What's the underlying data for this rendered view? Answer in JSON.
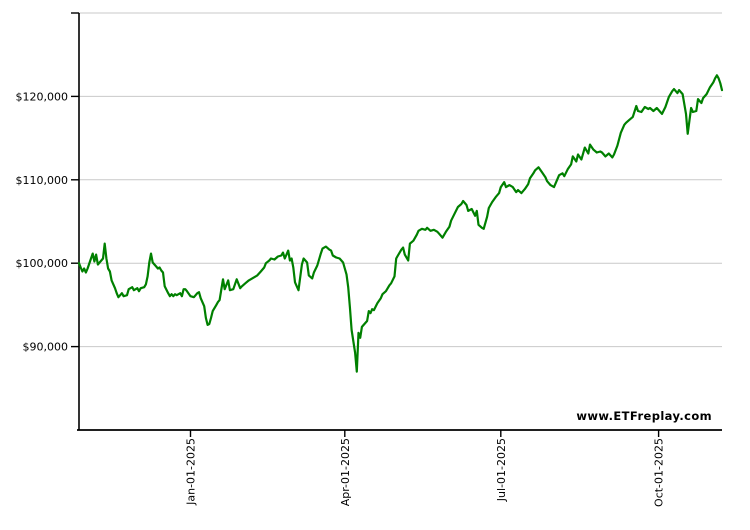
{
  "watermark": {
    "text": "www.ETFreplay.com"
  },
  "chart_data": {
    "type": "line",
    "title": "",
    "series_name": "portfolio-value",
    "line_color": "#008000",
    "grid_color": "#c9c9c9",
    "axis_color": "#000000",
    "text_color": "#000000",
    "grid": "horizontal-only",
    "legend": "none",
    "x_axis": {
      "tick_labels": [
        "Jan-01-2025",
        "Apr-01-2025",
        "Jul-01-2025",
        "Oct-01-2025"
      ],
      "tick_dates": [
        "2025-01-01",
        "2025-04-01",
        "2025-07-01",
        "2025-10-01"
      ],
      "range": [
        "2024-10-28",
        "2025-11-07"
      ]
    },
    "y_axis": {
      "tick_labels": [
        "$90,000",
        "$100,000",
        "$110,000",
        "$120,000"
      ],
      "tick_values": [
        90000,
        100000,
        110000,
        120000
      ],
      "gridline_values": [
        90000,
        100000,
        110000,
        120000,
        130000
      ],
      "range": [
        80000,
        130000
      ]
    },
    "points": [
      [
        "2024-10-28",
        100000
      ],
      [
        "2024-10-29",
        99490
      ],
      [
        "2024-10-30",
        99010
      ],
      [
        "2024-10-31",
        99370
      ],
      [
        "2024-11-01",
        98890
      ],
      [
        "2024-11-02",
        99370
      ],
      [
        "2024-11-04",
        100560
      ],
      [
        "2024-11-05",
        101150
      ],
      [
        "2024-11-06",
        100200
      ],
      [
        "2024-11-07",
        101030
      ],
      [
        "2024-11-08",
        99850
      ],
      [
        "2024-11-09",
        100080
      ],
      [
        "2024-11-11",
        100560
      ],
      [
        "2024-11-12",
        102350
      ],
      [
        "2024-11-13",
        100560
      ],
      [
        "2024-11-14",
        99370
      ],
      [
        "2024-11-15",
        99010
      ],
      [
        "2024-11-16",
        97940
      ],
      [
        "2024-11-18",
        97000
      ],
      [
        "2024-11-19",
        96400
      ],
      [
        "2024-11-20",
        95920
      ],
      [
        "2024-11-22",
        96400
      ],
      [
        "2024-11-23",
        96040
      ],
      [
        "2024-11-25",
        96160
      ],
      [
        "2024-11-26",
        96880
      ],
      [
        "2024-11-28",
        97120
      ],
      [
        "2024-11-29",
        96760
      ],
      [
        "2024-12-01",
        97000
      ],
      [
        "2024-12-02",
        96640
      ],
      [
        "2024-12-03",
        97000
      ],
      [
        "2024-12-05",
        97120
      ],
      [
        "2024-12-06",
        97470
      ],
      [
        "2024-12-07",
        98420
      ],
      [
        "2024-12-08",
        100080
      ],
      [
        "2024-12-09",
        101150
      ],
      [
        "2024-12-10",
        100080
      ],
      [
        "2024-12-12",
        99610
      ],
      [
        "2024-12-13",
        99370
      ],
      [
        "2024-12-14",
        99490
      ],
      [
        "2024-12-15",
        99130
      ],
      [
        "2024-12-16",
        98890
      ],
      [
        "2024-12-17",
        97230
      ],
      [
        "2024-12-19",
        96400
      ],
      [
        "2024-12-20",
        96040
      ],
      [
        "2024-12-21",
        96280
      ],
      [
        "2024-12-22",
        96040
      ],
      [
        "2024-12-23",
        96280
      ],
      [
        "2024-12-24",
        96160
      ],
      [
        "2024-12-26",
        96400
      ],
      [
        "2024-12-27",
        96040
      ],
      [
        "2024-12-28",
        96880
      ],
      [
        "2024-12-29",
        96880
      ],
      [
        "2024-12-30",
        96640
      ],
      [
        "2025-01-01",
        96040
      ],
      [
        "2025-01-03",
        95920
      ],
      [
        "2025-01-05",
        96400
      ],
      [
        "2025-01-06",
        96520
      ],
      [
        "2025-01-07",
        95800
      ],
      [
        "2025-01-09",
        94850
      ],
      [
        "2025-01-10",
        93430
      ],
      [
        "2025-01-11",
        92600
      ],
      [
        "2025-01-12",
        92710
      ],
      [
        "2025-01-13",
        93430
      ],
      [
        "2025-01-14",
        94260
      ],
      [
        "2025-01-16",
        94970
      ],
      [
        "2025-01-17",
        95330
      ],
      [
        "2025-01-18",
        95570
      ],
      [
        "2025-01-20",
        98070
      ],
      [
        "2025-01-21",
        96880
      ],
      [
        "2025-01-23",
        97940
      ],
      [
        "2025-01-24",
        96760
      ],
      [
        "2025-01-26",
        96880
      ],
      [
        "2025-01-28",
        98070
      ],
      [
        "2025-01-30",
        97000
      ],
      [
        "2025-01-31",
        97230
      ],
      [
        "2025-02-02",
        97590
      ],
      [
        "2025-02-04",
        97940
      ],
      [
        "2025-02-06",
        98180
      ],
      [
        "2025-02-07",
        98300
      ],
      [
        "2025-02-09",
        98540
      ],
      [
        "2025-02-11",
        99010
      ],
      [
        "2025-02-13",
        99490
      ],
      [
        "2025-02-14",
        100000
      ],
      [
        "2025-02-16",
        100320
      ],
      [
        "2025-02-17",
        100560
      ],
      [
        "2025-02-19",
        100440
      ],
      [
        "2025-02-21",
        100800
      ],
      [
        "2025-02-23",
        100920
      ],
      [
        "2025-02-24",
        101270
      ],
      [
        "2025-02-25",
        100560
      ],
      [
        "2025-02-27",
        101510
      ],
      [
        "2025-02-28",
        100320
      ],
      [
        "2025-03-01",
        100560
      ],
      [
        "2025-03-02",
        99490
      ],
      [
        "2025-03-03",
        97710
      ],
      [
        "2025-03-05",
        96760
      ],
      [
        "2025-03-07",
        99850
      ],
      [
        "2025-03-08",
        100560
      ],
      [
        "2025-03-10",
        100080
      ],
      [
        "2025-03-11",
        98540
      ],
      [
        "2025-03-13",
        98180
      ],
      [
        "2025-03-14",
        98890
      ],
      [
        "2025-03-16",
        99730
      ],
      [
        "2025-03-18",
        101150
      ],
      [
        "2025-03-19",
        101750
      ],
      [
        "2025-03-21",
        101990
      ],
      [
        "2025-03-23",
        101630
      ],
      [
        "2025-03-24",
        101510
      ],
      [
        "2025-03-25",
        100920
      ],
      [
        "2025-03-27",
        100680
      ],
      [
        "2025-03-29",
        100560
      ],
      [
        "2025-03-31",
        100080
      ],
      [
        "2025-04-01",
        99370
      ],
      [
        "2025-04-02",
        98660
      ],
      [
        "2025-04-03",
        97120
      ],
      [
        "2025-04-04",
        94730
      ],
      [
        "2025-04-05",
        92000
      ],
      [
        "2025-04-07",
        89270
      ],
      [
        "2025-04-08",
        87000
      ],
      [
        "2025-04-09",
        91650
      ],
      [
        "2025-04-10",
        91050
      ],
      [
        "2025-04-11",
        92360
      ],
      [
        "2025-04-13",
        92830
      ],
      [
        "2025-04-14",
        93070
      ],
      [
        "2025-04-15",
        94260
      ],
      [
        "2025-04-16",
        94020
      ],
      [
        "2025-04-17",
        94490
      ],
      [
        "2025-04-18",
        94380
      ],
      [
        "2025-04-20",
        95210
      ],
      [
        "2025-04-22",
        95800
      ],
      [
        "2025-04-23",
        96280
      ],
      [
        "2025-04-25",
        96640
      ],
      [
        "2025-04-27",
        97350
      ],
      [
        "2025-04-28",
        97590
      ],
      [
        "2025-04-30",
        98420
      ],
      [
        "2025-05-01",
        100560
      ],
      [
        "2025-05-02",
        100920
      ],
      [
        "2025-05-04",
        101630
      ],
      [
        "2025-05-05",
        101870
      ],
      [
        "2025-05-06",
        101030
      ],
      [
        "2025-05-08",
        100320
      ],
      [
        "2025-05-09",
        102350
      ],
      [
        "2025-05-11",
        102700
      ],
      [
        "2025-05-13",
        103420
      ],
      [
        "2025-05-14",
        103890
      ],
      [
        "2025-05-16",
        104130
      ],
      [
        "2025-05-18",
        104010
      ],
      [
        "2025-05-19",
        104250
      ],
      [
        "2025-05-21",
        103890
      ],
      [
        "2025-05-23",
        104010
      ],
      [
        "2025-05-25",
        103770
      ],
      [
        "2025-05-26",
        103540
      ],
      [
        "2025-05-28",
        103060
      ],
      [
        "2025-05-30",
        103770
      ],
      [
        "2025-06-01",
        104370
      ],
      [
        "2025-06-02",
        105090
      ],
      [
        "2025-06-04",
        105920
      ],
      [
        "2025-06-06",
        106740
      ],
      [
        "2025-06-08",
        107100
      ],
      [
        "2025-06-09",
        107460
      ],
      [
        "2025-06-11",
        106980
      ],
      [
        "2025-06-12",
        106270
      ],
      [
        "2025-06-14",
        106500
      ],
      [
        "2025-06-16",
        105680
      ],
      [
        "2025-06-17",
        106270
      ],
      [
        "2025-06-18",
        104600
      ],
      [
        "2025-06-20",
        104250
      ],
      [
        "2025-06-21",
        104130
      ],
      [
        "2025-06-23",
        105560
      ],
      [
        "2025-06-24",
        106620
      ],
      [
        "2025-06-26",
        107340
      ],
      [
        "2025-06-28",
        107930
      ],
      [
        "2025-06-30",
        108410
      ],
      [
        "2025-07-01",
        109130
      ],
      [
        "2025-07-03",
        109720
      ],
      [
        "2025-07-04",
        109130
      ],
      [
        "2025-07-06",
        109360
      ],
      [
        "2025-07-08",
        109130
      ],
      [
        "2025-07-10",
        108530
      ],
      [
        "2025-07-11",
        108760
      ],
      [
        "2025-07-13",
        108410
      ],
      [
        "2025-07-15",
        108880
      ],
      [
        "2025-07-17",
        109480
      ],
      [
        "2025-07-18",
        110190
      ],
      [
        "2025-07-20",
        110780
      ],
      [
        "2025-07-21",
        111140
      ],
      [
        "2025-07-23",
        111500
      ],
      [
        "2025-07-25",
        110900
      ],
      [
        "2025-07-27",
        110310
      ],
      [
        "2025-07-28",
        109830
      ],
      [
        "2025-07-30",
        109360
      ],
      [
        "2025-08-01",
        109130
      ],
      [
        "2025-08-03",
        110070
      ],
      [
        "2025-08-04",
        110550
      ],
      [
        "2025-08-06",
        110780
      ],
      [
        "2025-08-07",
        110430
      ],
      [
        "2025-08-09",
        111260
      ],
      [
        "2025-08-11",
        111850
      ],
      [
        "2025-08-12",
        112800
      ],
      [
        "2025-08-14",
        112200
      ],
      [
        "2025-08-15",
        113030
      ],
      [
        "2025-08-17",
        112440
      ],
      [
        "2025-08-19",
        113860
      ],
      [
        "2025-08-21",
        113150
      ],
      [
        "2025-08-22",
        114220
      ],
      [
        "2025-08-24",
        113620
      ],
      [
        "2025-08-26",
        113270
      ],
      [
        "2025-08-28",
        113390
      ],
      [
        "2025-08-29",
        113270
      ],
      [
        "2025-08-31",
        112800
      ],
      [
        "2025-09-02",
        113150
      ],
      [
        "2025-09-04",
        112680
      ],
      [
        "2025-09-05",
        113030
      ],
      [
        "2025-09-07",
        114100
      ],
      [
        "2025-09-09",
        115640
      ],
      [
        "2025-09-11",
        116590
      ],
      [
        "2025-09-12",
        116830
      ],
      [
        "2025-09-14",
        117190
      ],
      [
        "2025-09-16",
        117540
      ],
      [
        "2025-09-18",
        118850
      ],
      [
        "2025-09-19",
        118250
      ],
      [
        "2025-09-21",
        118130
      ],
      [
        "2025-09-23",
        118730
      ],
      [
        "2025-09-25",
        118490
      ],
      [
        "2025-09-26",
        118610
      ],
      [
        "2025-09-28",
        118250
      ],
      [
        "2025-09-30",
        118610
      ],
      [
        "2025-10-02",
        118130
      ],
      [
        "2025-10-03",
        117900
      ],
      [
        "2025-10-05",
        118730
      ],
      [
        "2025-10-07",
        119920
      ],
      [
        "2025-10-09",
        120630
      ],
      [
        "2025-10-10",
        120870
      ],
      [
        "2025-10-12",
        120390
      ],
      [
        "2025-10-13",
        120750
      ],
      [
        "2025-10-15",
        120270
      ],
      [
        "2025-10-17",
        117900
      ],
      [
        "2025-10-18",
        115520
      ],
      [
        "2025-10-20",
        118610
      ],
      [
        "2025-10-21",
        118130
      ],
      [
        "2025-10-23",
        118250
      ],
      [
        "2025-10-24",
        119680
      ],
      [
        "2025-10-26",
        119210
      ],
      [
        "2025-10-27",
        119800
      ],
      [
        "2025-10-29",
        120270
      ],
      [
        "2025-10-31",
        121100
      ],
      [
        "2025-11-02",
        121700
      ],
      [
        "2025-11-03",
        122170
      ],
      [
        "2025-11-04",
        122530
      ],
      [
        "2025-11-05",
        122170
      ],
      [
        "2025-11-06",
        121580
      ],
      [
        "2025-11-07",
        120750
      ]
    ]
  }
}
